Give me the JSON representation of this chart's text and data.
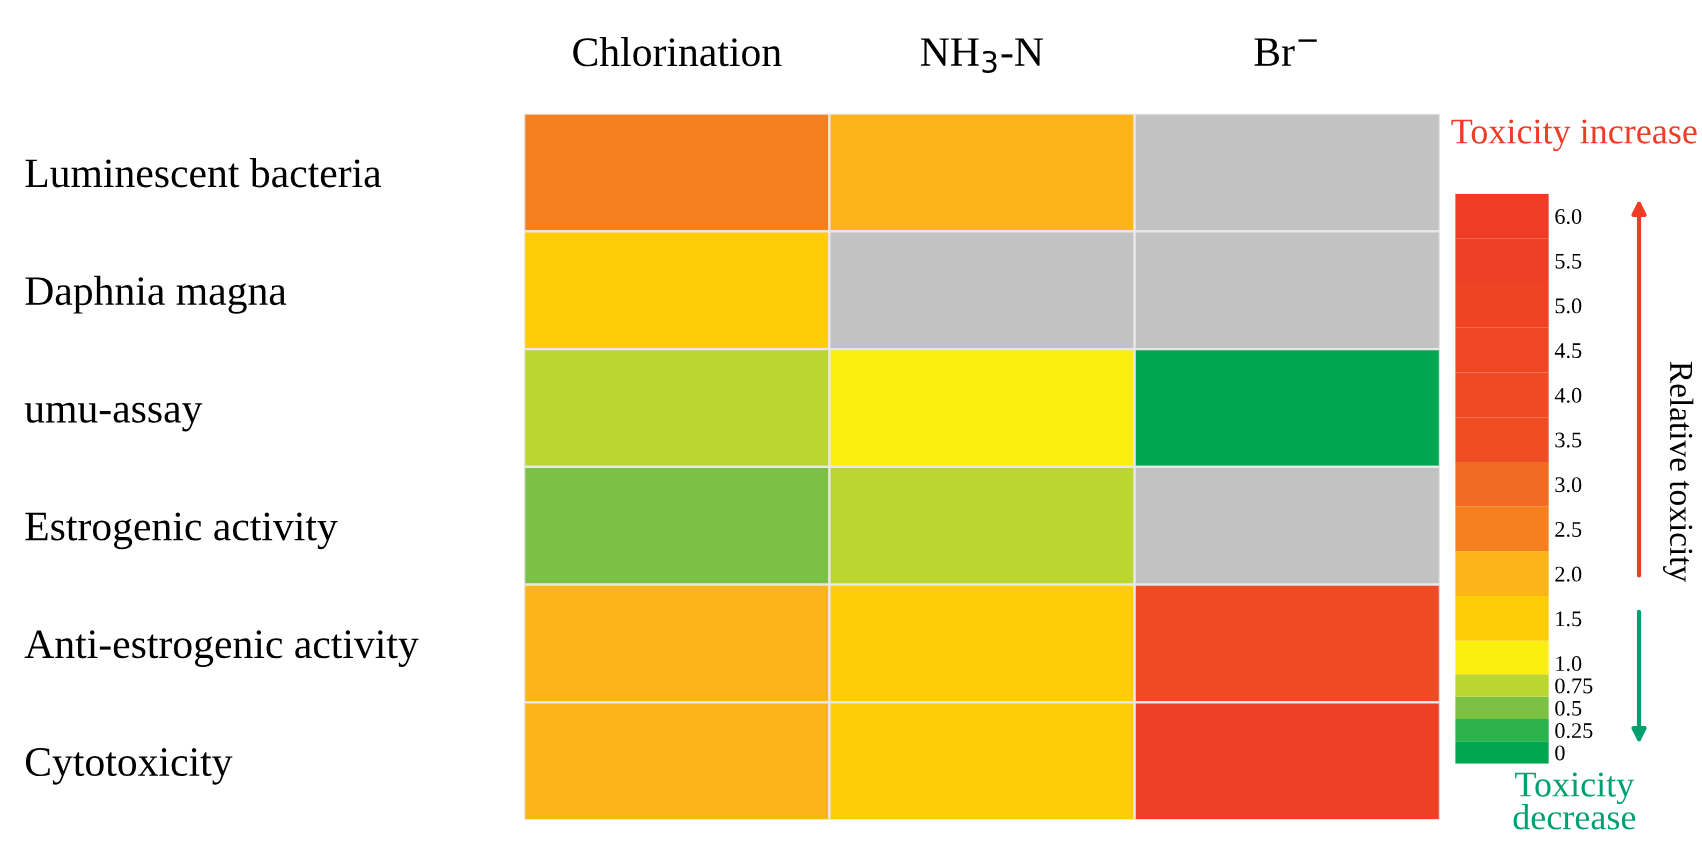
{
  "chart_data": {
    "type": "heatmap",
    "categories": [
      "Chlorination",
      "NH$_{3}$-N",
      "Br$^{−}$"
    ],
    "y_categories": [
      "Luminescent bacteria",
      "Daphnia magna",
      "umu-assay",
      "Estrogenic activity",
      "Anti-estrogenic activity",
      "Cytotoxicity"
    ],
    "cells": [
      [
        2.5,
        2.0,
        null
      ],
      [
        1.5,
        null,
        null
      ],
      [
        0.75,
        1.0,
        0
      ],
      [
        0.5,
        0.75,
        null
      ],
      [
        2.0,
        1.5,
        4.0
      ],
      [
        2.0,
        1.5,
        5.5
      ]
    ],
    "clabel": "Relative toxicity",
    "clim": [
      -0.125,
      6.25
    ],
    "cticks": [
      0,
      0.25,
      0.5,
      0.75,
      {
        "value": 1,
        "label": "1.0"
      },
      1.5,
      {
        "value": 2,
        "label": "2.0"
      },
      2.5,
      {
        "value": 3,
        "label": "3.0"
      },
      3.5,
      {
        "value": 4,
        "label": "4.0"
      },
      4.5,
      {
        "value": 5,
        "label": "5.0"
      },
      5.5,
      {
        "value": 6,
        "label": "6.0"
      }
    ],
    "colors": [
      "#00a650",
      "#2bb24a",
      "#7bc143",
      "#bcd631",
      "#fcee0e",
      "#ffcd08",
      "#fbb519",
      "#f58020",
      "#f26b23",
      "#ef4d23",
      "#ef4a23",
      "#ef4723",
      "#ee4424",
      "#ee4024",
      "#ee3d24"
    ],
    "annotations": [
      "Toxicity increase",
      "Toxicity decrease"
    ]
  }
}
